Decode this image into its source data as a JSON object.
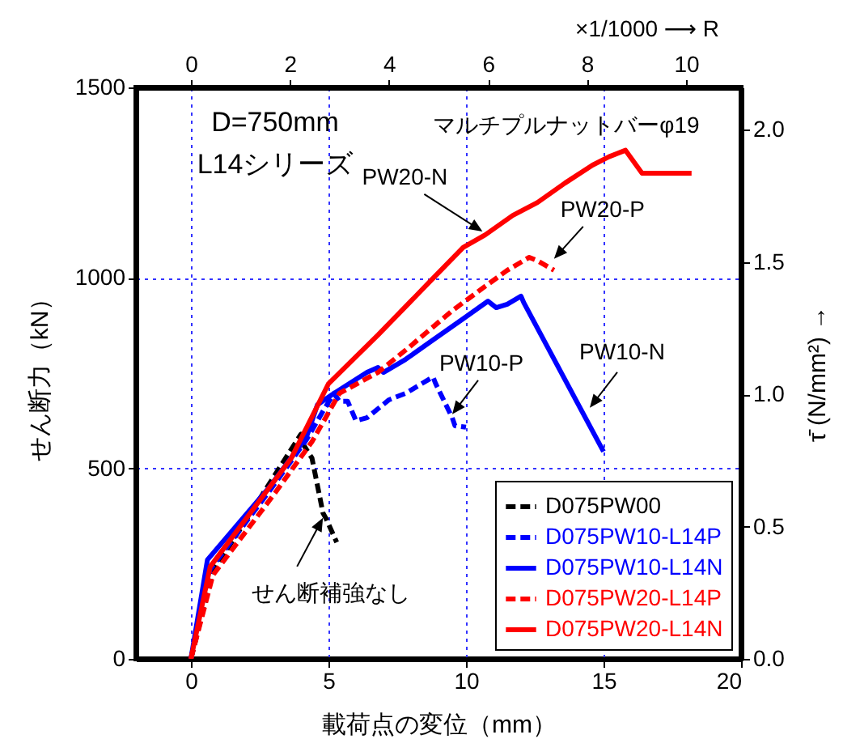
{
  "chart_data": {
    "type": "line",
    "xlabel": "載荷点の変位（mm）",
    "ylabel": "せん断力（kN）",
    "y2label": "τ̄ (N/mm²) →",
    "x2label": "×1/1000 ⟶ R",
    "xlim": [
      -2,
      20
    ],
    "xticks": [
      0,
      5,
      10,
      15,
      20
    ],
    "ylim": [
      0,
      1500
    ],
    "yticks": [
      0,
      500,
      1000,
      1500
    ],
    "x2lim": [
      -1.111,
      11.111
    ],
    "x2ticks": [
      0,
      2,
      4,
      6,
      8,
      10
    ],
    "y2lim": [
      0,
      2.16
    ],
    "y2ticks": [
      {
        "value": 0,
        "label": "0.0"
      },
      {
        "value": 0.5,
        "label": "0.5"
      },
      {
        "value": 1,
        "label": "1.0"
      },
      {
        "value": 1.5,
        "label": "1.5"
      },
      {
        "value": 2,
        "label": "2.0"
      }
    ],
    "grid": true,
    "legend": "bottom right",
    "series": [
      {
        "name": "D075PW00",
        "color": "#000000",
        "line_style": "dashed",
        "x": [
          0,
          0.8,
          2.5,
          4.0,
          4.1,
          4.4,
          4.8,
          4.9,
          5.3
        ],
        "values": [
          0,
          230,
          420,
          590,
          561,
          527,
          383,
          370,
          306
        ]
      },
      {
        "name": "D075PW10-L14P",
        "color": "#0000ff",
        "line_style": "dashed",
        "x": [
          0,
          0.7,
          2.9,
          4.2,
          4.8,
          5.2,
          5.4,
          5.7,
          6.0,
          6.4,
          7.2,
          7.8,
          8.8,
          8.9,
          9.5,
          9.6,
          10.0
        ],
        "values": [
          0,
          235,
          445,
          575,
          650,
          697,
          676,
          676,
          625,
          633,
          680,
          697,
          740,
          722,
          633,
          612,
          608
        ]
      },
      {
        "name": "D075PW10-L14N",
        "color": "#0000ff",
        "line_style": "solid",
        "x": [
          0,
          0.6,
          2.9,
          4.2,
          4.6,
          5.2,
          6.4,
          6.8,
          7.0,
          7.8,
          8.8,
          9.9,
          10.8,
          11.1,
          11.5,
          12.0,
          12.1,
          15.0
        ],
        "values": [
          0,
          260,
          455,
          582,
          667,
          697,
          752,
          765,
          752,
          786,
          837,
          893,
          939,
          922,
          931,
          952,
          935,
          544
        ]
      },
      {
        "name": "D075PW20-L14P",
        "color": "#ff0000",
        "line_style": "dashed",
        "x": [
          0,
          0.8,
          3.0,
          4.4,
          5.4,
          6.8,
          7.9,
          9.5,
          10.7,
          11.5,
          12.3,
          12.6,
          13.2
        ],
        "values": [
          0,
          220,
          430,
          570,
          697,
          752,
          816,
          914,
          978,
          1020,
          1054,
          1045,
          1020
        ]
      },
      {
        "name": "D075PW20-L14N",
        "color": "#ff0000",
        "line_style": "solid",
        "x": [
          0,
          0.7,
          3.65,
          5.0,
          6.8,
          8.75,
          9.9,
          10.7,
          11.7,
          12.6,
          13.6,
          14.6,
          15.2,
          15.8,
          16.4,
          18.2
        ],
        "values": [
          0,
          242,
          527,
          722,
          850,
          995,
          1080,
          1113,
          1164,
          1198,
          1249,
          1296,
          1318,
          1335,
          1275,
          1275
        ]
      }
    ],
    "annotations": [
      "D=750mm",
      "L14シリーズ",
      "マルチプルナットバーφ19",
      {
        "text": "PW20-N",
        "x": 10.6,
        "y": 1122
      },
      {
        "text": "PW20-P",
        "x": 13.2,
        "y": 1050
      },
      {
        "text": "PW10-P",
        "x": 9.5,
        "y": 642
      },
      {
        "text": "PW10-N",
        "x": 14.5,
        "y": 659
      },
      {
        "text": "せん断補強なし",
        "x": 4.8,
        "y": 370
      }
    ]
  }
}
